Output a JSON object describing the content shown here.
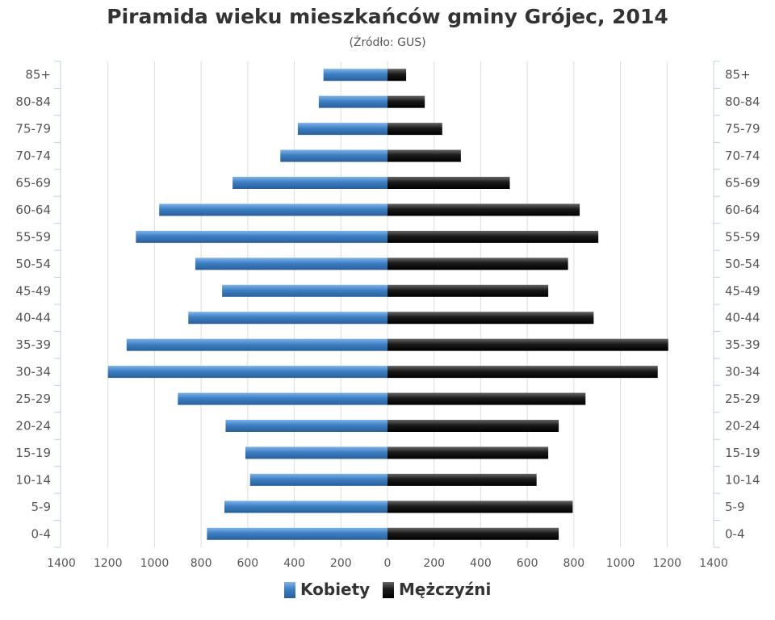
{
  "chart_data": {
    "type": "bar",
    "orientation": "horizontal",
    "title": "Piramida wieku mieszkańców gminy Grójec, 2014",
    "subtitle": "(Źródło: GUS)",
    "categories": [
      "0-4",
      "5-9",
      "10-14",
      "15-19",
      "20-24",
      "25-29",
      "30-34",
      "35-39",
      "40-44",
      "45-49",
      "50-54",
      "55-59",
      "60-64",
      "65-69",
      "70-74",
      "75-79",
      "80-84",
      "85+"
    ],
    "series": [
      {
        "name": "Kobiety",
        "color": "#3d7fc4",
        "side": "left",
        "values": [
          775,
          700,
          590,
          610,
          695,
          900,
          1200,
          1120,
          855,
          710,
          825,
          1080,
          980,
          665,
          460,
          385,
          295,
          275
        ]
      },
      {
        "name": "Mężczyźni",
        "color": "#1a1a1a",
        "side": "right",
        "values": [
          735,
          795,
          640,
          690,
          735,
          850,
          1160,
          1205,
          885,
          690,
          775,
          905,
          825,
          525,
          315,
          235,
          160,
          80
        ]
      }
    ],
    "xlim": [
      -1400,
      1400
    ],
    "x_tick_labels": [
      "1400",
      "1200",
      "1000",
      "800",
      "600",
      "400",
      "200",
      "0",
      "200",
      "400",
      "600",
      "800",
      "1000",
      "1200",
      "1400"
    ],
    "grid": true,
    "legend_position": "bottom"
  }
}
